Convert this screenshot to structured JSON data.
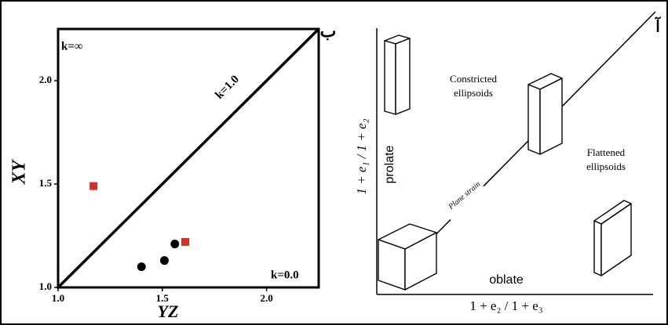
{
  "chart_data": {
    "type": "scatter",
    "x_label": "YZ",
    "y_label": "XY",
    "panel_label": "ب",
    "annotations": [
      "k=∞",
      "k=1.0",
      "k=0.0"
    ],
    "xlim": [
      1.0,
      2.25
    ],
    "ylim": [
      1.0,
      2.25
    ],
    "xticks": [
      {
        "value": 1.0,
        "label": "1.0"
      },
      {
        "value": 1.5,
        "label": "1.5"
      },
      {
        "value": 2.0,
        "label": "2.0"
      }
    ],
    "yticks": [
      {
        "value": 1.0,
        "label": "1.0"
      },
      {
        "value": 1.5,
        "label": "1.5"
      },
      {
        "value": 2.0,
        "label": "2.0"
      }
    ],
    "series": [
      {
        "color": "#000000",
        "marker": "circle",
        "x": [
          1.4,
          1.51,
          1.56
        ],
        "values": [
          1.1,
          1.13,
          1.21
        ]
      },
      {
        "color": "#d0312d",
        "marker": "square",
        "x": [
          1.17,
          1.61
        ],
        "values": [
          1.49,
          1.22
        ]
      }
    ]
  },
  "diagram": {
    "panel_label": "آ",
    "y_label": "1 + e₁ / 1 + e₂",
    "x_label": "1 + e₂ / 1 + e₃",
    "constricted": [
      "Constricted",
      "ellipsoids"
    ],
    "flattened": [
      "Flattened",
      "ellipsoids"
    ],
    "prolate": "prolate",
    "oblate": "oblate",
    "plane_strain": "Plane strain"
  }
}
